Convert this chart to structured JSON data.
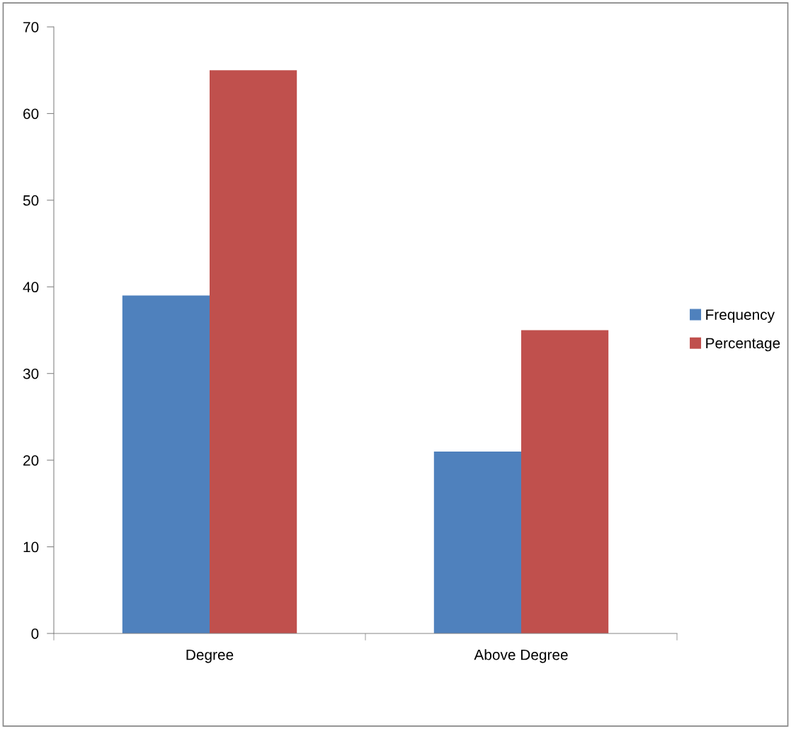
{
  "chart_data": {
    "type": "bar",
    "categories": [
      "Degree",
      "Above Degree"
    ],
    "series": [
      {
        "name": "Frequency",
        "color": "#4f81bd",
        "values": [
          39,
          21
        ]
      },
      {
        "name": "Percentage",
        "color": "#c0504d",
        "values": [
          65,
          35
        ]
      }
    ],
    "ylim": [
      0,
      70
    ],
    "yticks": [
      0,
      10,
      20,
      30,
      40,
      50,
      60,
      70
    ],
    "grid": false,
    "legend": "right"
  }
}
